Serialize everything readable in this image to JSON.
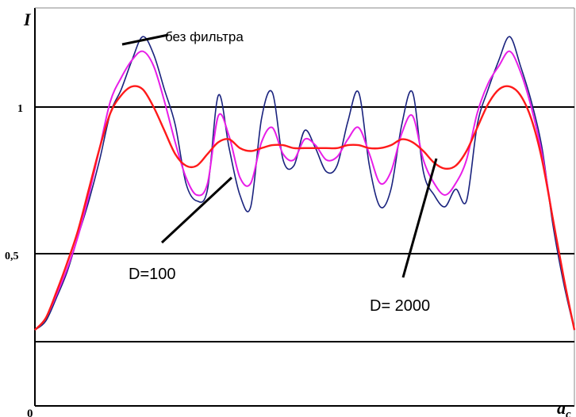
{
  "chart_data": {
    "type": "line",
    "ylabel": "I",
    "xlabel": "a_c",
    "x_tick_labels": [
      "0"
    ],
    "y_ticks": [
      {
        "value": 1.0,
        "label": "1"
      },
      {
        "value": 0.5,
        "label": "0,5"
      }
    ],
    "reference_lines": [
      1.0,
      0.5,
      0.2
    ],
    "x_range": [
      0,
      1
    ],
    "y_range": [
      0.0,
      1.3
    ],
    "series": [
      {
        "name": "без фильтра",
        "color": "#1a237e",
        "x": [
          0.0,
          0.02,
          0.04,
          0.06,
          0.08,
          0.1,
          0.12,
          0.14,
          0.16,
          0.18,
          0.2,
          0.22,
          0.24,
          0.26,
          0.28,
          0.3,
          0.32,
          0.34,
          0.36,
          0.38,
          0.4,
          0.42,
          0.44,
          0.46,
          0.48,
          0.5,
          0.52,
          0.54,
          0.56,
          0.58,
          0.6,
          0.62,
          0.64,
          0.66,
          0.68,
          0.7,
          0.72,
          0.74,
          0.76,
          0.78,
          0.8,
          0.82,
          0.84,
          0.86,
          0.88,
          0.9,
          0.92,
          0.94,
          0.96,
          0.98,
          1.0
        ],
        "y": [
          0.24,
          0.27,
          0.35,
          0.44,
          0.56,
          0.68,
          0.82,
          0.98,
          1.06,
          1.16,
          1.24,
          1.18,
          1.06,
          0.94,
          0.74,
          0.68,
          0.72,
          1.04,
          0.86,
          0.7,
          0.66,
          0.96,
          1.05,
          0.82,
          0.8,
          0.92,
          0.86,
          0.78,
          0.8,
          0.95,
          1.05,
          0.8,
          0.66,
          0.72,
          0.94,
          1.05,
          0.78,
          0.7,
          0.66,
          0.72,
          0.68,
          0.94,
          1.06,
          1.16,
          1.24,
          1.14,
          1.02,
          0.86,
          0.6,
          0.4,
          0.24
        ]
      },
      {
        "name": "D=100",
        "color": "#e81ee8",
        "x": [
          0.0,
          0.02,
          0.04,
          0.06,
          0.08,
          0.1,
          0.12,
          0.14,
          0.16,
          0.18,
          0.2,
          0.22,
          0.24,
          0.26,
          0.28,
          0.3,
          0.32,
          0.34,
          0.36,
          0.38,
          0.4,
          0.42,
          0.44,
          0.46,
          0.48,
          0.5,
          0.52,
          0.54,
          0.56,
          0.58,
          0.6,
          0.62,
          0.64,
          0.66,
          0.68,
          0.7,
          0.72,
          0.74,
          0.76,
          0.78,
          0.8,
          0.82,
          0.84,
          0.86,
          0.88,
          0.9,
          0.92,
          0.94,
          0.96,
          0.98,
          1.0
        ],
        "y": [
          0.24,
          0.28,
          0.36,
          0.45,
          0.56,
          0.7,
          0.86,
          1.02,
          1.1,
          1.16,
          1.19,
          1.14,
          1.02,
          0.88,
          0.76,
          0.7,
          0.74,
          0.97,
          0.9,
          0.76,
          0.74,
          0.88,
          0.93,
          0.84,
          0.82,
          0.89,
          0.87,
          0.82,
          0.83,
          0.89,
          0.93,
          0.84,
          0.74,
          0.78,
          0.91,
          0.97,
          0.82,
          0.74,
          0.7,
          0.74,
          0.82,
          0.98,
          1.08,
          1.14,
          1.19,
          1.12,
          1.0,
          0.84,
          0.62,
          0.42,
          0.24
        ]
      },
      {
        "name": "D=2000",
        "color": "#ff1a1a",
        "x": [
          0.0,
          0.02,
          0.04,
          0.06,
          0.08,
          0.1,
          0.12,
          0.14,
          0.16,
          0.18,
          0.2,
          0.22,
          0.24,
          0.26,
          0.28,
          0.3,
          0.32,
          0.34,
          0.36,
          0.38,
          0.4,
          0.42,
          0.44,
          0.46,
          0.48,
          0.5,
          0.52,
          0.54,
          0.56,
          0.58,
          0.6,
          0.62,
          0.64,
          0.66,
          0.68,
          0.7,
          0.72,
          0.74,
          0.76,
          0.78,
          0.8,
          0.82,
          0.84,
          0.86,
          0.88,
          0.9,
          0.92,
          0.94,
          0.96,
          0.98,
          1.0
        ],
        "y": [
          0.24,
          0.28,
          0.37,
          0.47,
          0.58,
          0.72,
          0.86,
          0.98,
          1.04,
          1.07,
          1.06,
          1.0,
          0.92,
          0.84,
          0.8,
          0.8,
          0.84,
          0.88,
          0.89,
          0.86,
          0.85,
          0.86,
          0.87,
          0.87,
          0.86,
          0.86,
          0.86,
          0.86,
          0.86,
          0.87,
          0.87,
          0.86,
          0.86,
          0.87,
          0.89,
          0.88,
          0.85,
          0.81,
          0.79,
          0.8,
          0.85,
          0.93,
          1.01,
          1.06,
          1.07,
          1.04,
          0.96,
          0.82,
          0.62,
          0.42,
          0.24
        ]
      }
    ],
    "annotations": [
      {
        "text": "без фильтра",
        "target_series": 0
      },
      {
        "text": "D=100",
        "target_series": 1
      },
      {
        "text": "D= 2000",
        "target_series": 2
      }
    ]
  }
}
